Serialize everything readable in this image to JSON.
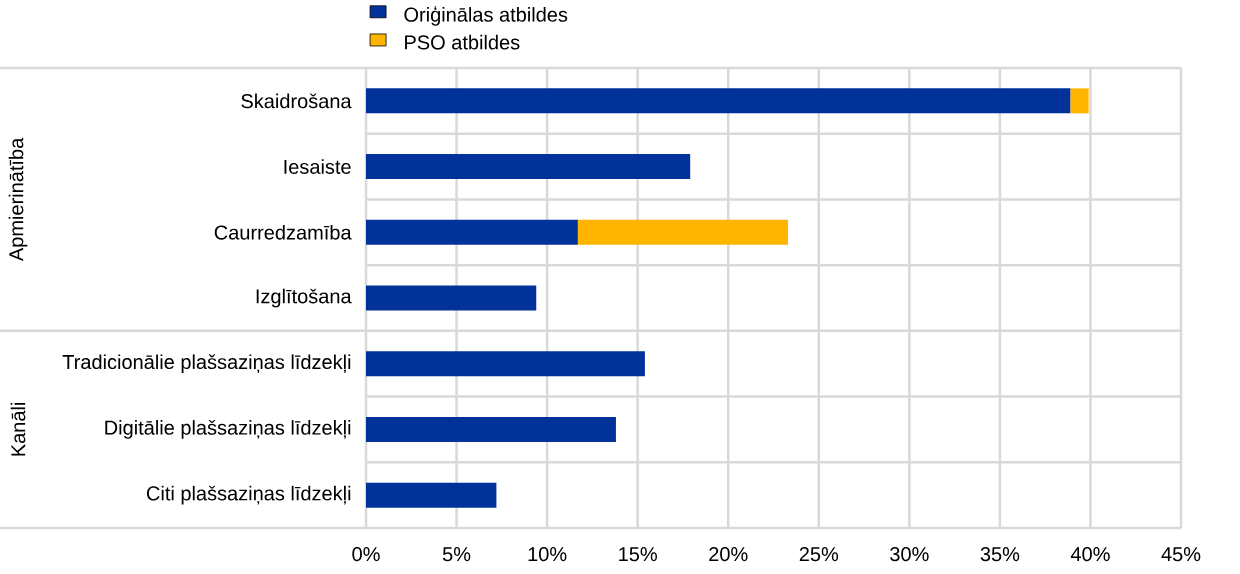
{
  "chart_data": {
    "type": "bar",
    "orientation": "horizontal",
    "stacked": true,
    "categories": [
      "Skaidrošana",
      "Iesaiste",
      "Caurredzamība",
      "Izglītošana",
      "Tradicionālie plašsaziņas līdzekļi",
      "Digitālie plašsaziņas līdzekļi",
      "Citi plašsaziņas līdzekļi"
    ],
    "series": [
      {
        "name": "Oriģinālas atbildes",
        "color": "#003299",
        "values": [
          38.9,
          17.9,
          11.7,
          9.4,
          15.4,
          13.8,
          7.2
        ]
      },
      {
        "name": "PSO atbildes",
        "color": "#ffb400",
        "values": [
          1.0,
          null,
          11.6,
          null,
          null,
          null,
          null
        ]
      }
    ],
    "xlim": [
      0,
      45
    ],
    "xticks": [
      {
        "value": 0,
        "label": "0%"
      },
      {
        "value": 5,
        "label": "5%"
      },
      {
        "value": 10,
        "label": "10%"
      },
      {
        "value": 15,
        "label": "15%"
      },
      {
        "value": 20,
        "label": "20%"
      },
      {
        "value": 25,
        "label": "25%"
      },
      {
        "value": 30,
        "label": "30%"
      },
      {
        "value": 35,
        "label": "35%"
      },
      {
        "value": 40,
        "label": "40%"
      },
      {
        "value": 45,
        "label": "45%"
      }
    ],
    "grid": true,
    "legend": "top",
    "annotations": [
      "Apmierinātība",
      "Kanāli"
    ]
  }
}
